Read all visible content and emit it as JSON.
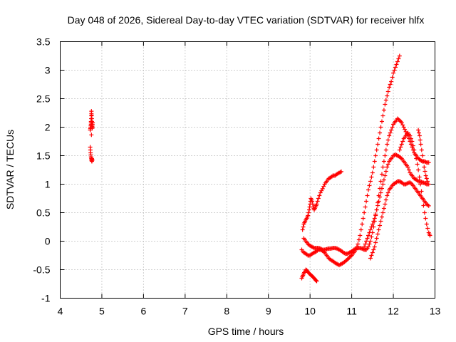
{
  "chart_data": {
    "type": "scatter",
    "title": "Day 048 of 2026, Sidereal Day-to-day VTEC variation (SDTVAR) for receiver hlfx",
    "xlabel": "GPS time / hours",
    "ylabel": "SDTVAR / TECUs",
    "xlim": [
      4,
      13
    ],
    "ylim": [
      -1,
      3.5
    ],
    "xticks": [
      "4",
      "5",
      "6",
      "7",
      "8",
      "9",
      "10",
      "11",
      "12",
      "13"
    ],
    "yticks": [
      "-1",
      "-0.5",
      "0",
      "0.5",
      "1",
      "1.5",
      "2",
      "2.5",
      "3",
      "3.5"
    ],
    "grid": true,
    "marker": "+",
    "color": "#ff0000",
    "series": [
      {
        "x": [
          4.72,
          4.73,
          4.74,
          4.74,
          4.75,
          4.75,
          4.76,
          4.76,
          4.77,
          4.77,
          4.78,
          4.72,
          4.73,
          4.74,
          4.75,
          4.76,
          4.76,
          4.77
        ],
        "y": [
          1.95,
          2.0,
          2.05,
          2.1,
          2.2,
          2.28,
          2.15,
          2.05,
          1.98,
          2.02,
          2.08,
          1.65,
          1.55,
          1.48,
          1.43,
          1.4,
          1.45,
          1.42
        ]
      },
      {
        "x": [
          9.8,
          9.83,
          9.86,
          9.9,
          9.93,
          9.96,
          10.0,
          10.03,
          10.06,
          10.1,
          10.13,
          10.16
        ],
        "y": [
          -0.65,
          -0.6,
          -0.55,
          -0.5,
          -0.52,
          -0.55,
          -0.58,
          -0.6,
          -0.62,
          -0.65,
          -0.68,
          -0.7
        ]
      },
      {
        "x": [
          9.82,
          9.85,
          9.88,
          9.92,
          9.95,
          9.98,
          10.0,
          10.02,
          10.05,
          10.08,
          10.1,
          10.13,
          10.16,
          10.2,
          10.25,
          10.3,
          10.35,
          10.4,
          10.45,
          10.5,
          10.55,
          10.6,
          10.65,
          10.7,
          10.75
        ],
        "y": [
          0.2,
          0.3,
          0.35,
          0.4,
          0.45,
          0.55,
          0.65,
          0.75,
          0.7,
          0.6,
          0.55,
          0.6,
          0.65,
          0.75,
          0.85,
          0.92,
          1.0,
          1.05,
          1.1,
          1.12,
          1.15,
          1.15,
          1.18,
          1.2,
          1.22
        ]
      },
      {
        "x": [
          9.8,
          9.85,
          9.9,
          9.95,
          10.0,
          10.05,
          10.1,
          10.15,
          10.2,
          10.25,
          10.3,
          10.35,
          10.4,
          10.45,
          10.5,
          10.55,
          10.6,
          10.65,
          10.7,
          10.75,
          10.8,
          10.85,
          10.9,
          10.95,
          11.0,
          11.05,
          11.1,
          11.15,
          11.2,
          11.25,
          11.3,
          11.35,
          11.4,
          11.45,
          11.5,
          11.55,
          11.6,
          11.65,
          11.7,
          11.75,
          11.8,
          11.85,
          11.9,
          11.95,
          12.0,
          12.05,
          12.1,
          12.15
        ],
        "y": [
          -0.15,
          -0.2,
          -0.22,
          -0.25,
          -0.25,
          -0.22,
          -0.2,
          -0.18,
          -0.15,
          -0.15,
          -0.17,
          -0.2,
          -0.25,
          -0.3,
          -0.33,
          -0.35,
          -0.38,
          -0.4,
          -0.42,
          -0.4,
          -0.38,
          -0.35,
          -0.32,
          -0.28,
          -0.25,
          -0.2,
          -0.15,
          -0.05,
          0.1,
          0.3,
          0.5,
          0.7,
          0.9,
          1.05,
          1.2,
          1.4,
          1.6,
          1.8,
          2.0,
          2.2,
          2.4,
          2.55,
          2.7,
          2.8,
          2.95,
          3.05,
          3.15,
          3.25
        ]
      },
      {
        "x": [
          9.85,
          9.9,
          9.95,
          10.0,
          10.05,
          10.1,
          10.15,
          10.2,
          10.25,
          10.3,
          10.35,
          10.4,
          10.45,
          10.5,
          10.55,
          10.6,
          10.65,
          10.7,
          10.75,
          10.8,
          10.85,
          10.9,
          10.95,
          11.0,
          11.05,
          11.1,
          11.15,
          11.2,
          11.25,
          11.3,
          11.35,
          11.4,
          11.45,
          11.5,
          11.55,
          11.6,
          11.65,
          11.7,
          11.75,
          11.8,
          11.85,
          11.9,
          11.95,
          12.0,
          12.05,
          12.1,
          12.15,
          12.2,
          12.25,
          12.3,
          12.35,
          12.4,
          12.45,
          12.5,
          12.55,
          12.6,
          12.65,
          12.7,
          12.75,
          12.8,
          12.85
        ],
        "y": [
          0.05,
          0.0,
          -0.05,
          -0.08,
          -0.1,
          -0.12,
          -0.12,
          -0.12,
          -0.13,
          -0.15,
          -0.15,
          -0.14,
          -0.13,
          -0.13,
          -0.12,
          -0.12,
          -0.13,
          -0.15,
          -0.17,
          -0.2,
          -0.22,
          -0.22,
          -0.2,
          -0.18,
          -0.15,
          -0.13,
          -0.12,
          -0.12,
          -0.13,
          -0.15,
          -0.15,
          -0.1,
          0.0,
          0.15,
          0.35,
          0.55,
          0.8,
          1.05,
          1.3,
          1.5,
          1.7,
          1.85,
          1.95,
          2.05,
          2.1,
          2.15,
          2.12,
          2.08,
          2.0,
          1.92,
          1.85,
          1.75,
          1.65,
          1.55,
          1.5,
          1.45,
          1.42,
          1.4,
          1.4,
          1.38,
          1.38
        ]
      },
      {
        "x": [
          11.3,
          11.35,
          11.4,
          11.45,
          11.5,
          11.55,
          11.6,
          11.65,
          11.7,
          11.75,
          11.8,
          11.85,
          11.9,
          11.95,
          12.0,
          12.05,
          12.1,
          12.15,
          12.2,
          12.25,
          12.3,
          12.35,
          12.4,
          12.45,
          12.5,
          12.55,
          12.6,
          12.65,
          12.7,
          12.75,
          12.8,
          12.85
        ],
        "y": [
          -0.1,
          0.0,
          0.1,
          0.2,
          0.3,
          0.4,
          0.55,
          0.7,
          0.85,
          1.0,
          1.15,
          1.3,
          1.4,
          1.45,
          1.5,
          1.52,
          1.5,
          1.48,
          1.45,
          1.4,
          1.35,
          1.3,
          1.2,
          1.15,
          1.1,
          1.08,
          1.05,
          1.05,
          1.03,
          1.02,
          1.0,
          1.0
        ]
      },
      {
        "x": [
          11.45,
          11.5,
          11.55,
          11.6,
          11.65,
          11.7,
          11.75,
          11.8,
          11.85,
          11.9,
          11.95,
          12.0,
          12.05,
          12.1,
          12.15,
          12.2,
          12.25,
          12.3,
          12.35,
          12.4,
          12.45,
          12.5,
          12.55,
          12.6,
          12.65,
          12.7,
          12.75,
          12.8,
          12.85
        ],
        "y": [
          -0.3,
          -0.2,
          -0.1,
          0.05,
          0.2,
          0.35,
          0.5,
          0.65,
          0.8,
          0.9,
          0.95,
          1.0,
          1.02,
          1.05,
          1.05,
          1.03,
          1.0,
          1.0,
          1.02,
          1.03,
          1.0,
          0.95,
          0.9,
          0.85,
          0.8,
          0.75,
          0.7,
          0.65,
          0.62
        ]
      },
      {
        "x": [
          12.15,
          12.2,
          12.25,
          12.3,
          12.35,
          12.4,
          12.45,
          12.5,
          12.55,
          12.6,
          12.65,
          12.7,
          12.75,
          12.8,
          12.85,
          12.88
        ],
        "y": [
          1.6,
          1.7,
          1.8,
          1.85,
          1.9,
          1.85,
          1.75,
          1.6,
          1.45,
          1.25,
          1.0,
          0.75,
          0.5,
          0.3,
          0.15,
          0.1
        ]
      },
      {
        "x": [
          12.6,
          12.63,
          12.66,
          12.7,
          12.74,
          12.78,
          12.82
        ],
        "y": [
          1.95,
          1.85,
          1.7,
          1.5,
          1.3,
          1.15,
          1.05
        ]
      }
    ]
  }
}
